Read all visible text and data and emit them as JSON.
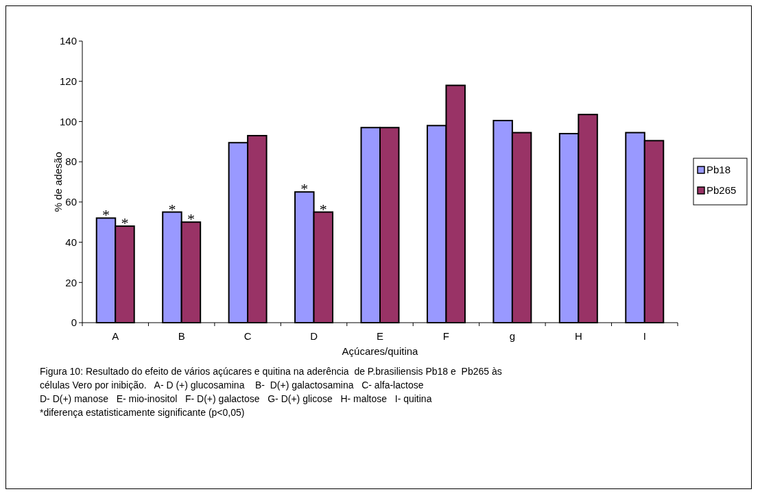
{
  "chart_data": {
    "type": "bar",
    "xlabel": "Açúcares/quitina",
    "ylabel": "% de adesão",
    "categories": [
      "A",
      "B",
      "C",
      "D",
      "E",
      "F",
      "g",
      "H",
      "I"
    ],
    "series": [
      {
        "name": "Pb18",
        "color": "#9999ff",
        "values": [
          52,
          55,
          89.5,
          65,
          97,
          98,
          100.5,
          94,
          94.5
        ]
      },
      {
        "name": "Pb265",
        "color": "#993366",
        "values": [
          48,
          50,
          93,
          55,
          97,
          118,
          94.5,
          103.5,
          90.5
        ]
      }
    ],
    "ylim": [
      0,
      140
    ],
    "yticks": [
      0,
      20,
      40,
      60,
      80,
      100,
      120,
      140
    ],
    "grid": false,
    "legend": "right",
    "annotations": [
      {
        "text": "*",
        "x": "A",
        "y": 52
      },
      {
        "text": "*",
        "x": "A",
        "y": 48
      },
      {
        "text": "*",
        "x": "B",
        "y": 55
      },
      {
        "text": "*",
        "x": "B",
        "y": 50
      },
      {
        "text": "*",
        "x": "D",
        "y": 65
      },
      {
        "text": "*",
        "x": "D",
        "y": 55
      },
      "Figura 10: Resultado do efeito de vários açúcares e quitina na aderência  de P.brasiliensis Pb18 e  Pb265 às",
      "células Vero por inibição.   A- D (+) glucosamina    B-  D(+) galactosamina   C- alfa-lactose",
      "D- D(+) manose   E- mio-inositol   F- D(+) galactose   G- D(+) glicose   H- maltose   I- quitina",
      "*diferença estatisticamente significante (p<0,05)"
    ]
  }
}
